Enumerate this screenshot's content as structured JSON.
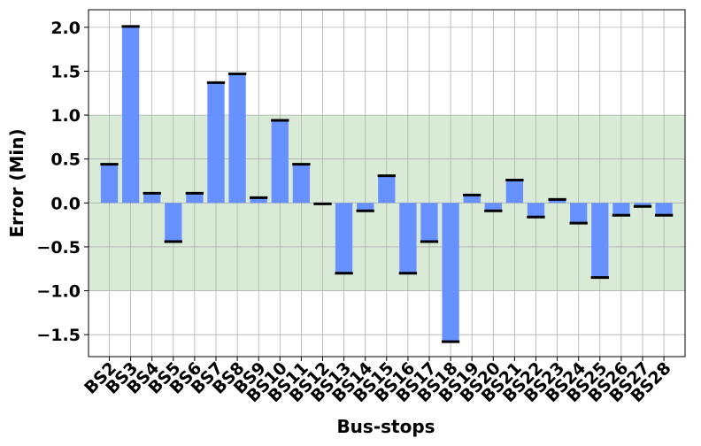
{
  "chart_data": {
    "type": "bar",
    "title": "",
    "xlabel": "Bus-stops",
    "ylabel": "Error (Min)",
    "ylim": [
      -1.75,
      2.2
    ],
    "yticks": [
      -1.5,
      -1.0,
      -0.5,
      0.0,
      0.5,
      1.0,
      1.5,
      2.0
    ],
    "ytick_labels": [
      "−1.5",
      "−1.0",
      "−0.5",
      "0.0",
      "0.5",
      "1.0",
      "1.5",
      "2.0"
    ],
    "grid": true,
    "band": {
      "from": -1.0,
      "to": 1.0,
      "color": "#d9ead6"
    },
    "bar_color": "#6691ff",
    "cap_color": "#000000",
    "categories": [
      "BS2",
      "BS3",
      "BS4",
      "BS5",
      "BS6",
      "BS7",
      "BS8",
      "BS9",
      "BS10",
      "BS11",
      "BS12",
      "BS13",
      "BS14",
      "BS15",
      "BS16",
      "BS17",
      "BS18",
      "BS19",
      "BS20",
      "BS21",
      "BS22",
      "BS23",
      "BS24",
      "BS25",
      "BS26",
      "BS27",
      "BS28"
    ],
    "values": [
      0.44,
      2.01,
      0.11,
      -0.44,
      0.11,
      1.37,
      1.47,
      0.06,
      0.94,
      0.44,
      -0.01,
      -0.8,
      -0.09,
      0.31,
      -0.8,
      -0.44,
      -1.58,
      0.09,
      -0.09,
      0.26,
      -0.16,
      0.04,
      -0.23,
      -0.85,
      -0.14,
      -0.04,
      -0.14
    ]
  }
}
